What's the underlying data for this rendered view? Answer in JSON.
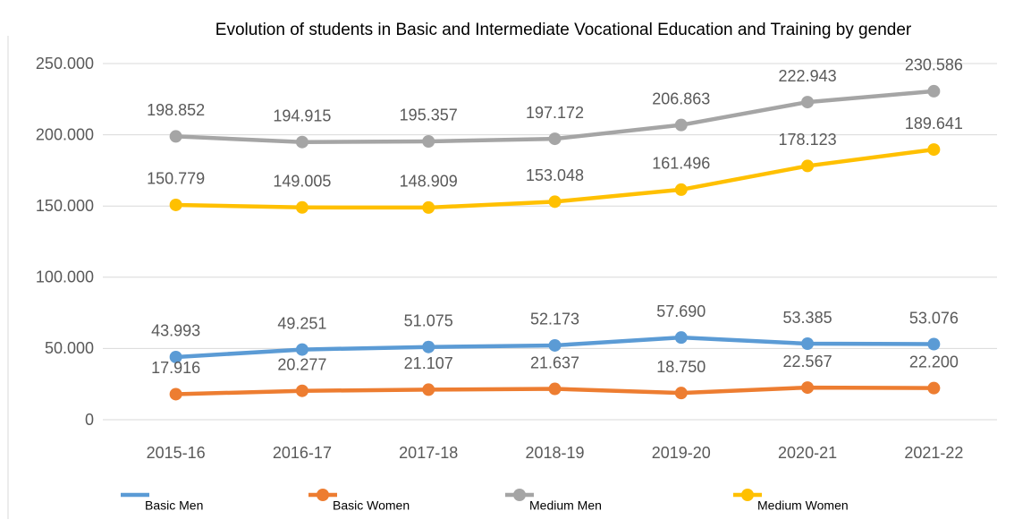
{
  "chart_data": {
    "type": "line",
    "title": "Evolution of students in Basic and Intermediate Vocational Education and Training by gender",
    "categories": [
      "2015-16",
      "2016-17",
      "2017-18",
      "2018-19",
      "2019-20",
      "2020-21",
      "2021-22"
    ],
    "series": [
      {
        "name": "Basic Men",
        "color": "#5b9bd5",
        "values": [
          43993,
          49251,
          51075,
          52173,
          57690,
          53385,
          53076
        ],
        "value_labels": [
          "43.993",
          "49.251",
          "51.075",
          "52.173",
          "57.690",
          "53.385",
          "53.076"
        ]
      },
      {
        "name": "Basic Women",
        "color": "#ed7d31",
        "values": [
          17916,
          20277,
          21107,
          21637,
          18750,
          22567,
          22200
        ],
        "value_labels": [
          "17.916",
          "20.277",
          "21.107",
          "21.637",
          "18.750",
          "22.567",
          "22.200"
        ]
      },
      {
        "name": "Medium Men",
        "color": "#a5a5a5",
        "values": [
          198852,
          194915,
          195357,
          197172,
          206863,
          222943,
          230586
        ],
        "value_labels": [
          "198.852",
          "194.915",
          "195.357",
          "197.172",
          "206.863",
          "222.943",
          "230.586"
        ]
      },
      {
        "name": "Medium Women",
        "color": "#ffc000",
        "values": [
          150779,
          149005,
          148909,
          153048,
          161496,
          178123,
          189641
        ],
        "value_labels": [
          "150.779",
          "149.005",
          "148.909",
          "153.048",
          "161.496",
          "178.123",
          "189.641"
        ]
      }
    ],
    "ylim": [
      0,
      250000
    ],
    "yticks": [
      0,
      {
        "value": 50000,
        "label": "50.000"
      },
      {
        "value": 100000,
        "label": "100.000"
      },
      {
        "value": 150000,
        "label": "150.000"
      },
      {
        "value": 200000,
        "label": "200.000"
      },
      {
        "value": 250000,
        "label": "250.000"
      }
    ],
    "grid": true,
    "legend": "bottom"
  }
}
